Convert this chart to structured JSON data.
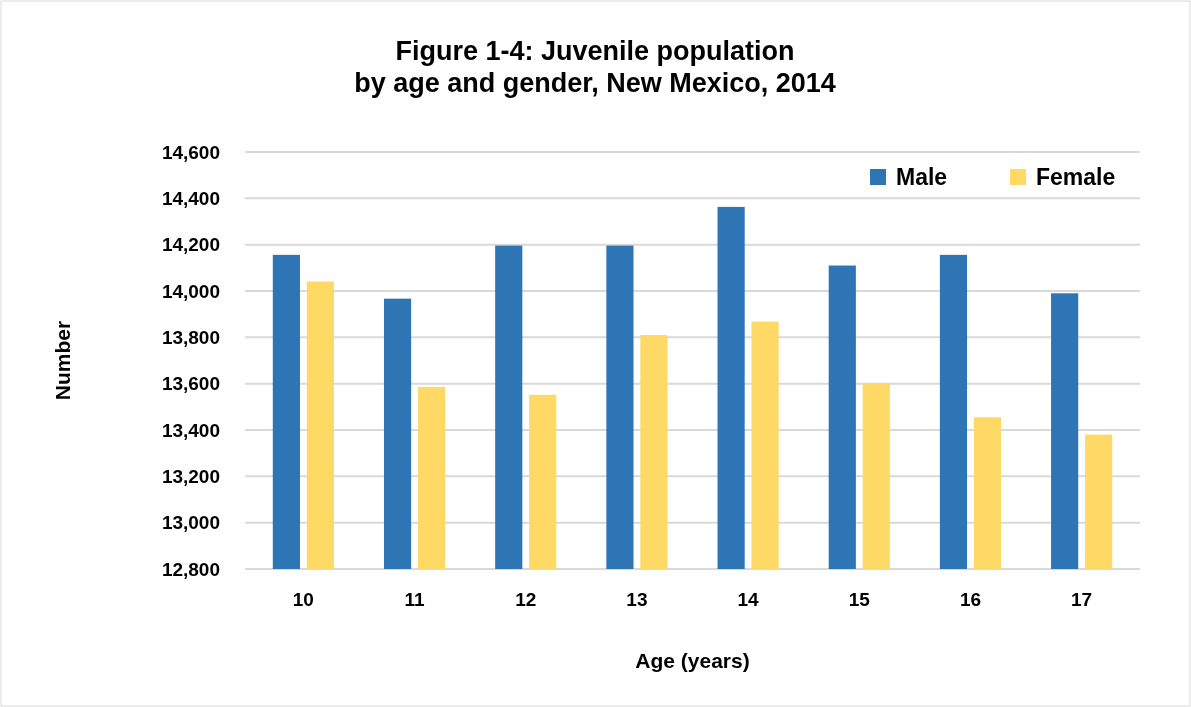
{
  "chart_data": {
    "type": "bar",
    "title": "Figure 1-4: Juvenile population\nby age and gender, New Mexico, 2014",
    "xlabel": "Age (years)",
    "ylabel": "Number",
    "categories": [
      "10",
      "11",
      "12",
      "13",
      "14",
      "15",
      "16",
      "17"
    ],
    "series": [
      {
        "name": "Male",
        "color": "#2e75b6",
        "values": [
          14156,
          13967,
          14196,
          14196,
          14363,
          14110,
          14156,
          13990
        ]
      },
      {
        "name": "Female",
        "color": "#ffd966",
        "values": [
          14041,
          13586,
          13552,
          13810,
          13868,
          13603,
          13455,
          13380
        ]
      }
    ],
    "ylim": [
      12800,
      14600
    ],
    "yticks": [
      {
        "value": 12800,
        "label": "12,800"
      },
      {
        "value": 13000,
        "label": "13,000"
      },
      {
        "value": 13200,
        "label": "13,200"
      },
      {
        "value": 13400,
        "label": "13,400"
      },
      {
        "value": 13600,
        "label": "13,600"
      },
      {
        "value": 13800,
        "label": "13,800"
      },
      {
        "value": 14000,
        "label": "14,000"
      },
      {
        "value": 14200,
        "label": "14,200"
      },
      {
        "value": 14400,
        "label": "14,400"
      },
      {
        "value": 14600,
        "label": "14,600"
      }
    ],
    "grid": "y",
    "legend": "top right"
  }
}
